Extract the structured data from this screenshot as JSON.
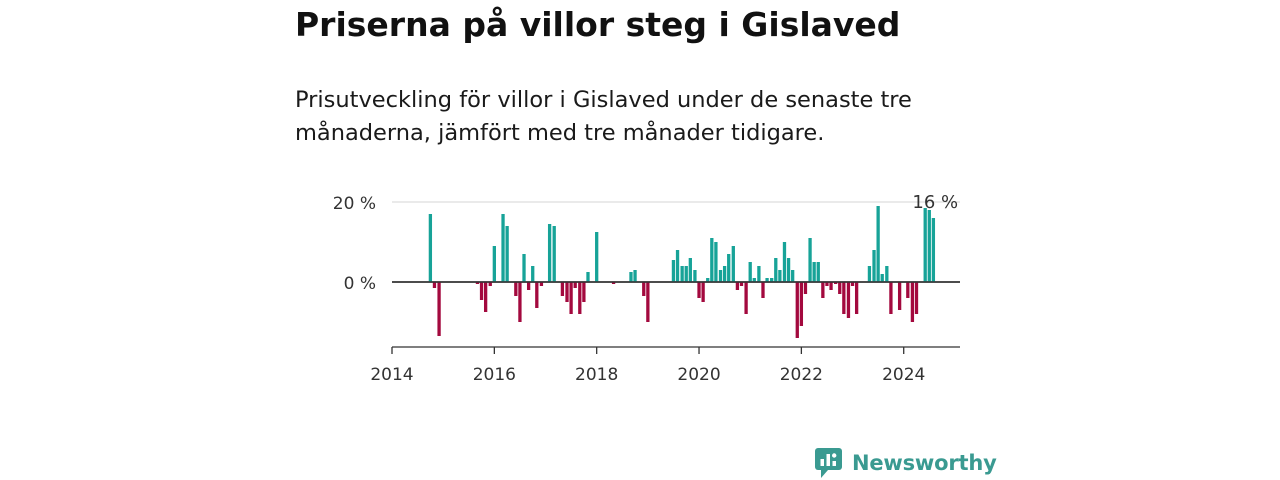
{
  "header": {
    "title": "Priserna på villor steg i Gislaved",
    "subtitle": "Prisutveckling för villor i Gislaved under de senaste tre månaderna, jämfört med tre månader tidigare."
  },
  "brand": {
    "name": "Newsworthy",
    "icon": "newsworthy-logo-icon",
    "color": "#3a9a91"
  },
  "colors": {
    "positive": "#17a398",
    "negative": "#a3093e",
    "grid": "#dddddd",
    "axis": "#333333"
  },
  "chart_data": {
    "type": "bar",
    "title": "Priserna på villor steg i Gislaved",
    "xlabel": "",
    "ylabel": "",
    "x_ticks": [
      "2014",
      "2016",
      "2018",
      "2020",
      "2022",
      "2024"
    ],
    "y_ticks": [
      {
        "value": 0,
        "label": "0 %"
      },
      {
        "value": 20,
        "label": "20 %"
      }
    ],
    "ylim": [
      -16,
      20
    ],
    "xlim": [
      2014.0,
      2025.1
    ],
    "grid": "horizontal",
    "annotation": {
      "x": 2024.46,
      "y": 16,
      "label": "16 %"
    },
    "series": [
      {
        "values": [
          {
            "x": 2014.75,
            "y": 17.0
          },
          {
            "x": 2014.83,
            "y": -1.5
          },
          {
            "x": 2014.92,
            "y": -13.5
          },
          {
            "x": 2015.67,
            "y": -0.5
          },
          {
            "x": 2015.75,
            "y": -4.5
          },
          {
            "x": 2015.83,
            "y": -7.5
          },
          {
            "x": 2015.92,
            "y": -1.0
          },
          {
            "x": 2016.0,
            "y": 9.0
          },
          {
            "x": 2016.17,
            "y": 17.0
          },
          {
            "x": 2016.25,
            "y": 14.0
          },
          {
            "x": 2016.42,
            "y": -3.5
          },
          {
            "x": 2016.5,
            "y": -10.0
          },
          {
            "x": 2016.58,
            "y": 7.0
          },
          {
            "x": 2016.67,
            "y": -2.0
          },
          {
            "x": 2016.75,
            "y": 4.0
          },
          {
            "x": 2016.83,
            "y": -6.5
          },
          {
            "x": 2016.92,
            "y": -1.0
          },
          {
            "x": 2017.08,
            "y": 14.5
          },
          {
            "x": 2017.17,
            "y": 14.0
          },
          {
            "x": 2017.33,
            "y": -3.5
          },
          {
            "x": 2017.42,
            "y": -5.0
          },
          {
            "x": 2017.5,
            "y": -8.0
          },
          {
            "x": 2017.58,
            "y": -1.5
          },
          {
            "x": 2017.67,
            "y": -8.0
          },
          {
            "x": 2017.75,
            "y": -5.0
          },
          {
            "x": 2017.83,
            "y": 2.5
          },
          {
            "x": 2018.0,
            "y": 12.5
          },
          {
            "x": 2018.33,
            "y": -0.5
          },
          {
            "x": 2018.67,
            "y": 2.5
          },
          {
            "x": 2018.75,
            "y": 3.0
          },
          {
            "x": 2018.92,
            "y": -3.5
          },
          {
            "x": 2019.0,
            "y": -10.0
          },
          {
            "x": 2019.5,
            "y": 5.5
          },
          {
            "x": 2019.58,
            "y": 8.0
          },
          {
            "x": 2019.67,
            "y": 4.0
          },
          {
            "x": 2019.75,
            "y": 4.0
          },
          {
            "x": 2019.83,
            "y": 6.0
          },
          {
            "x": 2019.92,
            "y": 3.0
          },
          {
            "x": 2020.0,
            "y": -4.0
          },
          {
            "x": 2020.08,
            "y": -5.0
          },
          {
            "x": 2020.17,
            "y": 1.0
          },
          {
            "x": 2020.25,
            "y": 11.0
          },
          {
            "x": 2020.33,
            "y": 10.0
          },
          {
            "x": 2020.42,
            "y": 3.0
          },
          {
            "x": 2020.5,
            "y": 4.0
          },
          {
            "x": 2020.58,
            "y": 7.0
          },
          {
            "x": 2020.67,
            "y": 9.0
          },
          {
            "x": 2020.75,
            "y": -2.0
          },
          {
            "x": 2020.83,
            "y": -1.0
          },
          {
            "x": 2020.92,
            "y": -8.0
          },
          {
            "x": 2021.0,
            "y": 5.0
          },
          {
            "x": 2021.08,
            "y": 1.0
          },
          {
            "x": 2021.17,
            "y": 4.0
          },
          {
            "x": 2021.25,
            "y": -4.0
          },
          {
            "x": 2021.33,
            "y": 1.0
          },
          {
            "x": 2021.42,
            "y": 1.0
          },
          {
            "x": 2021.5,
            "y": 6.0
          },
          {
            "x": 2021.58,
            "y": 3.0
          },
          {
            "x": 2021.67,
            "y": 10.0
          },
          {
            "x": 2021.75,
            "y": 6.0
          },
          {
            "x": 2021.83,
            "y": 3.0
          },
          {
            "x": 2021.92,
            "y": -14.0
          },
          {
            "x": 2022.0,
            "y": -11.0
          },
          {
            "x": 2022.08,
            "y": -3.0
          },
          {
            "x": 2022.17,
            "y": 11.0
          },
          {
            "x": 2022.25,
            "y": 5.0
          },
          {
            "x": 2022.33,
            "y": 5.0
          },
          {
            "x": 2022.42,
            "y": -4.0
          },
          {
            "x": 2022.5,
            "y": -1.0
          },
          {
            "x": 2022.58,
            "y": -2.0
          },
          {
            "x": 2022.67,
            "y": -0.5
          },
          {
            "x": 2022.75,
            "y": -3.0
          },
          {
            "x": 2022.83,
            "y": -8.0
          },
          {
            "x": 2022.92,
            "y": -9.0
          },
          {
            "x": 2023.0,
            "y": -1.0
          },
          {
            "x": 2023.08,
            "y": -8.0
          },
          {
            "x": 2023.33,
            "y": 4.0
          },
          {
            "x": 2023.42,
            "y": 8.0
          },
          {
            "x": 2023.5,
            "y": 19.0
          },
          {
            "x": 2023.58,
            "y": 2.0
          },
          {
            "x": 2023.67,
            "y": 4.0
          },
          {
            "x": 2023.75,
            "y": -8.0
          },
          {
            "x": 2023.92,
            "y": -7.0
          },
          {
            "x": 2024.08,
            "y": -4.0
          },
          {
            "x": 2024.17,
            "y": -10.0
          },
          {
            "x": 2024.25,
            "y": -8.0
          },
          {
            "x": 2024.42,
            "y": 18.5
          },
          {
            "x": 2024.5,
            "y": 18.0
          },
          {
            "x": 2024.58,
            "y": 16.0
          }
        ]
      }
    ]
  }
}
